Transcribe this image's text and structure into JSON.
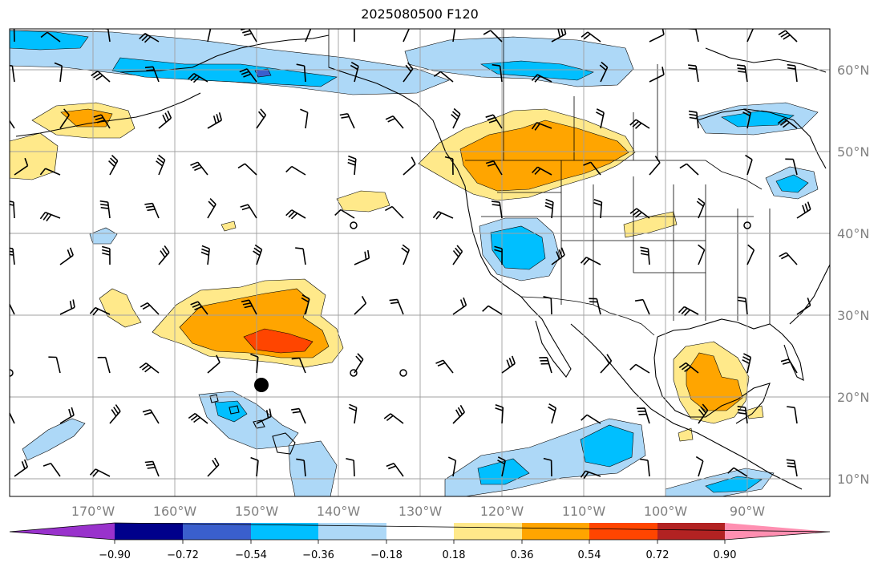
{
  "title": "2025080500 F120",
  "colors": {
    "background": "#ffffff",
    "land_line": "#000000",
    "grid": "#a0a0a0",
    "axis_label": "#808080"
  },
  "map": {
    "projection": "PlateCarree",
    "lon_range": [
      -180,
      -80
    ],
    "lat_range": [
      8,
      65
    ],
    "lon_ticks": [
      {
        "value": -170,
        "label": "170°W"
      },
      {
        "value": -160,
        "label": "160°W"
      },
      {
        "value": -150,
        "label": "150°W"
      },
      {
        "value": -140,
        "label": "140°W"
      },
      {
        "value": -130,
        "label": "130°W"
      },
      {
        "value": -120,
        "label": "120°W"
      },
      {
        "value": -110,
        "label": "110°W"
      },
      {
        "value": -100,
        "label": "100°W"
      },
      {
        "value": -90,
        "label": "90°W"
      }
    ],
    "lat_ticks": [
      {
        "value": 60,
        "label": "60°N"
      },
      {
        "value": 50,
        "label": "50°N"
      },
      {
        "value": 40,
        "label": "40°N"
      },
      {
        "value": 30,
        "label": "30°N"
      },
      {
        "value": 20,
        "label": "20°N"
      },
      {
        "value": 10,
        "label": "10°N"
      }
    ],
    "storm_marker": {
      "lon": -148.5,
      "lat": 21.5,
      "symbol": "filled-circle"
    }
  },
  "colorbar": {
    "levels": [
      -0.9,
      -0.72,
      -0.54,
      -0.36,
      -0.18,
      0.18,
      0.36,
      0.54,
      0.72,
      0.9
    ],
    "tick_labels": [
      "−0.90",
      "−0.72",
      "−0.54",
      "−0.36",
      "−0.18",
      "0.18",
      "0.36",
      "0.54",
      "0.72",
      "0.90"
    ],
    "bins": [
      {
        "color": "#9932cc"
      },
      {
        "color": "#00008b"
      },
      {
        "color": "#3a5fcd"
      },
      {
        "color": "#00bfff"
      },
      {
        "color": "#add8f7"
      },
      {
        "color": "#ffffff"
      },
      {
        "color": "#ffe98a"
      },
      {
        "color": "#ffa500"
      },
      {
        "color": "#ff4500"
      },
      {
        "color": "#b22222"
      },
      {
        "color": "#ff8fb1"
      }
    ],
    "extend": "both"
  }
}
